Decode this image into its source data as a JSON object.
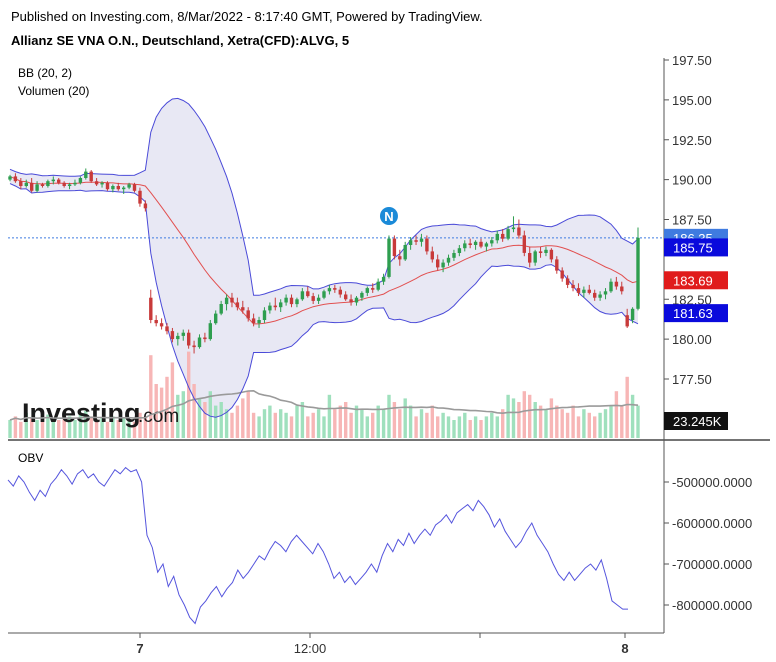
{
  "header": {
    "published": "Published on Investing.com, 8/Mar/2022 - 8:17:40 GMT, Powered by TradingView.",
    "instrument": "Allianz SE VNA O.N., Deutschland, Xetra(CFD):ALVG, 5"
  },
  "indicators": {
    "bb_label": "BB (20, 2)",
    "vol_label": "Volumen (20)",
    "obv_label": "OBV"
  },
  "logo": {
    "main": "Investing",
    "suffix": ".com"
  },
  "event_marker": "N",
  "price_axis": {
    "ticks": [
      "197.50",
      "195.00",
      "192.50",
      "190.00",
      "187.50",
      "182.50",
      "180.00",
      "177.50"
    ],
    "badges": [
      {
        "value": "186.35",
        "color": "#3f7be0"
      },
      {
        "value": "185.75",
        "color": "#0a0adc"
      },
      {
        "value": "183.69",
        "color": "#e01b1b"
      },
      {
        "value": "181.63",
        "color": "#0a0adc"
      }
    ],
    "volume_badge": "23.245K"
  },
  "obv_axis": {
    "ticks": [
      "-500000.0000",
      "-600000.0000",
      "-700000.0000",
      "-800000.0000"
    ]
  },
  "time_axis": {
    "ticks": [
      "7",
      "12:00",
      "8"
    ]
  },
  "colors": {
    "up": "#2e9e4f",
    "down": "#c83a3a",
    "vol_up": "#9fe0bd",
    "vol_down": "#f7b6b6",
    "bb_line": "#4a4ad8",
    "bb_fill": "#e4e4f2",
    "bb_mid": "#e25050",
    "obv_line": "#5555dd",
    "vol_ma": "#9a9a9a"
  },
  "chart_data": [
    {
      "type": "candlestick",
      "title": "Allianz SE VNA O.N., Deutschland, Xetra(CFD):ALVG, 5",
      "ylim": [
        176.5,
        197.5
      ],
      "last_price": 186.35,
      "ohlc": [
        [
          190.0,
          190.3,
          189.9,
          190.2
        ],
        [
          190.2,
          190.4,
          189.8,
          189.9
        ],
        [
          189.9,
          190.1,
          189.4,
          189.6
        ],
        [
          189.6,
          190.0,
          189.5,
          189.8
        ],
        [
          189.8,
          190.1,
          189.2,
          189.3
        ],
        [
          189.3,
          189.9,
          189.2,
          189.7
        ],
        [
          189.7,
          189.8,
          189.5,
          189.6
        ],
        [
          189.6,
          190.0,
          189.5,
          189.9
        ],
        [
          189.9,
          190.2,
          189.7,
          190.0
        ],
        [
          190.0,
          190.1,
          189.7,
          189.8
        ],
        [
          189.8,
          189.9,
          189.5,
          189.6
        ],
        [
          189.6,
          189.8,
          189.4,
          189.7
        ],
        [
          189.7,
          190.0,
          189.6,
          189.8
        ],
        [
          189.8,
          190.2,
          189.7,
          190.1
        ],
        [
          190.1,
          190.7,
          190.0,
          190.5
        ],
        [
          190.5,
          190.6,
          189.8,
          189.9
        ],
        [
          189.9,
          190.1,
          189.6,
          189.7
        ],
        [
          189.7,
          189.9,
          189.5,
          189.8
        ],
        [
          189.8,
          189.9,
          189.3,
          189.4
        ],
        [
          189.4,
          189.7,
          189.2,
          189.6
        ],
        [
          189.6,
          189.8,
          189.3,
          189.4
        ],
        [
          189.4,
          189.6,
          189.1,
          189.5
        ],
        [
          189.5,
          189.8,
          189.4,
          189.7
        ],
        [
          189.7,
          189.8,
          189.2,
          189.3
        ],
        [
          189.3,
          189.5,
          188.3,
          188.5
        ],
        [
          188.5,
          188.7,
          188.0,
          188.2
        ],
        [
          182.6,
          183.1,
          181.0,
          181.2
        ],
        [
          181.2,
          181.5,
          180.8,
          181.0
        ],
        [
          181.0,
          181.3,
          180.6,
          180.8
        ],
        [
          180.8,
          181.0,
          180.3,
          180.5
        ],
        [
          180.5,
          180.7,
          179.8,
          180.0
        ],
        [
          180.0,
          180.4,
          179.6,
          180.2
        ],
        [
          180.2,
          180.6,
          179.9,
          180.4
        ],
        [
          180.4,
          180.6,
          179.4,
          179.6
        ],
        [
          179.6,
          179.9,
          179.1,
          179.5
        ],
        [
          179.5,
          180.3,
          179.4,
          180.1
        ],
        [
          180.1,
          180.4,
          179.8,
          180.0
        ],
        [
          180.0,
          181.2,
          179.9,
          181.0
        ],
        [
          181.0,
          181.8,
          180.9,
          181.6
        ],
        [
          181.6,
          182.4,
          181.5,
          182.2
        ],
        [
          182.2,
          182.8,
          181.8,
          182.6
        ],
        [
          182.6,
          182.9,
          182.0,
          182.3
        ],
        [
          182.3,
          182.6,
          181.8,
          182.0
        ],
        [
          182.0,
          182.4,
          181.6,
          181.8
        ],
        [
          181.8,
          182.0,
          181.1,
          181.3
        ],
        [
          181.3,
          181.6,
          180.8,
          181.0
        ],
        [
          181.0,
          181.4,
          180.7,
          181.2
        ],
        [
          181.2,
          182.0,
          181.0,
          181.8
        ],
        [
          181.8,
          182.3,
          181.6,
          182.1
        ],
        [
          182.1,
          182.6,
          181.8,
          182.0
        ],
        [
          182.0,
          182.5,
          181.7,
          182.3
        ],
        [
          182.3,
          182.8,
          182.1,
          182.6
        ],
        [
          182.6,
          182.8,
          182.0,
          182.2
        ],
        [
          182.2,
          182.6,
          182.0,
          182.5
        ],
        [
          182.5,
          183.2,
          182.4,
          183.0
        ],
        [
          183.0,
          183.3,
          182.6,
          182.7
        ],
        [
          182.7,
          182.9,
          182.2,
          182.4
        ],
        [
          182.4,
          182.8,
          182.2,
          182.6
        ],
        [
          182.6,
          183.1,
          182.5,
          183.0
        ],
        [
          183.0,
          183.4,
          182.8,
          183.2
        ],
        [
          183.2,
          183.4,
          182.9,
          183.1
        ],
        [
          183.1,
          183.3,
          182.6,
          182.8
        ],
        [
          182.8,
          183.0,
          182.4,
          182.5
        ],
        [
          182.5,
          182.8,
          182.1,
          182.3
        ],
        [
          182.3,
          182.7,
          182.1,
          182.6
        ],
        [
          182.6,
          183.0,
          182.4,
          182.9
        ],
        [
          182.9,
          183.3,
          182.7,
          183.2
        ],
        [
          183.2,
          183.5,
          182.9,
          183.1
        ],
        [
          183.1,
          183.8,
          183.0,
          183.6
        ],
        [
          183.6,
          184.1,
          183.4,
          183.9
        ],
        [
          183.9,
          186.5,
          183.8,
          186.3
        ],
        [
          186.3,
          186.5,
          185.0,
          185.2
        ],
        [
          185.2,
          185.6,
          184.6,
          185.0
        ],
        [
          185.0,
          186.1,
          184.9,
          185.9
        ],
        [
          185.9,
          186.4,
          185.6,
          186.2
        ],
        [
          186.2,
          186.5,
          185.9,
          186.1
        ],
        [
          186.1,
          186.6,
          185.8,
          186.3
        ],
        [
          186.3,
          186.5,
          185.3,
          185.5
        ],
        [
          185.5,
          185.8,
          184.8,
          185.0
        ],
        [
          185.0,
          185.3,
          184.3,
          184.5
        ],
        [
          184.5,
          185.0,
          184.2,
          184.8
        ],
        [
          184.8,
          185.3,
          184.6,
          185.1
        ],
        [
          185.1,
          185.6,
          184.9,
          185.4
        ],
        [
          185.4,
          185.9,
          185.2,
          185.7
        ],
        [
          185.7,
          186.2,
          185.5,
          186.0
        ],
        [
          186.0,
          186.3,
          185.7,
          185.9
        ],
        [
          185.9,
          186.2,
          185.6,
          186.1
        ],
        [
          186.1,
          186.3,
          185.7,
          185.8
        ],
        [
          185.8,
          186.1,
          185.5,
          186.0
        ],
        [
          186.0,
          186.4,
          185.8,
          186.2
        ],
        [
          186.2,
          186.8,
          186.0,
          186.6
        ],
        [
          186.6,
          186.9,
          186.1,
          186.3
        ],
        [
          186.3,
          187.1,
          186.2,
          186.9
        ],
        [
          186.9,
          187.7,
          186.7,
          187.0
        ],
        [
          187.0,
          187.5,
          186.3,
          186.5
        ],
        [
          186.5,
          186.8,
          185.2,
          185.4
        ],
        [
          185.4,
          185.8,
          184.5,
          184.8
        ],
        [
          184.8,
          185.6,
          184.6,
          185.5
        ],
        [
          185.5,
          185.8,
          185.1,
          185.4
        ],
        [
          185.4,
          185.8,
          185.2,
          185.6
        ],
        [
          185.6,
          185.7,
          184.8,
          185.0
        ],
        [
          185.0,
          185.2,
          184.1,
          184.3
        ],
        [
          184.3,
          184.5,
          183.6,
          183.8
        ],
        [
          183.8,
          184.0,
          183.2,
          183.4
        ],
        [
          183.4,
          183.7,
          183.0,
          183.2
        ],
        [
          183.2,
          183.5,
          182.7,
          182.9
        ],
        [
          182.9,
          183.3,
          182.6,
          183.1
        ],
        [
          183.1,
          183.4,
          182.8,
          182.9
        ],
        [
          182.9,
          183.1,
          182.4,
          182.6
        ],
        [
          182.6,
          183.0,
          182.4,
          182.8
        ],
        [
          182.8,
          183.2,
          182.5,
          183.0
        ],
        [
          183.0,
          183.8,
          182.9,
          183.6
        ],
        [
          183.6,
          183.9,
          183.1,
          183.3
        ],
        [
          183.3,
          183.6,
          182.8,
          183.0
        ],
        [
          181.5,
          181.9,
          180.7,
          180.8
        ],
        [
          181.2,
          182.0,
          181.0,
          181.9
        ],
        [
          181.9,
          187.0,
          181.8,
          186.35
        ]
      ],
      "volume": [
        0.5,
        0.6,
        0.45,
        0.7,
        0.55,
        0.5,
        0.6,
        0.65,
        0.45,
        0.5,
        0.55,
        0.6,
        0.5,
        0.7,
        0.75,
        0.6,
        0.5,
        0.55,
        0.45,
        0.6,
        0.5,
        0.55,
        0.5,
        0.45,
        0.7,
        0.6,
        2.3,
        1.5,
        1.4,
        1.7,
        2.1,
        1.2,
        1.3,
        2.4,
        1.5,
        1.1,
        1.0,
        1.3,
        0.9,
        1.0,
        0.8,
        0.7,
        0.9,
        1.1,
        1.3,
        0.7,
        0.6,
        0.8,
        0.9,
        0.7,
        0.8,
        0.7,
        0.6,
        0.9,
        1.0,
        0.6,
        0.7,
        0.8,
        0.6,
        1.2,
        0.8,
        0.9,
        1.0,
        0.7,
        0.9,
        0.8,
        0.6,
        0.7,
        0.9,
        0.8,
        1.2,
        1.0,
        0.8,
        1.1,
        0.9,
        0.6,
        0.8,
        0.7,
        0.9,
        0.6,
        0.7,
        0.6,
        0.5,
        0.6,
        0.7,
        0.5,
        0.6,
        0.5,
        0.6,
        0.7,
        0.6,
        0.8,
        1.2,
        1.1,
        1.0,
        1.3,
        1.2,
        1.0,
        0.9,
        0.8,
        1.1,
        0.9,
        0.8,
        0.7,
        0.9,
        0.6,
        0.8,
        0.7,
        0.6,
        0.7,
        0.8,
        0.9,
        1.3,
        0.9,
        1.7,
        1.2,
        0.9
      ]
    },
    {
      "type": "line",
      "title": "OBV",
      "ylim": [
        -870000,
        -430000
      ],
      "values": [
        -495000,
        -510000,
        -485000,
        -500000,
        -525000,
        -545000,
        -520000,
        -535000,
        -505000,
        -490000,
        -470000,
        -485000,
        -505000,
        -480000,
        -470000,
        -490000,
        -480000,
        -500000,
        -510000,
        -490000,
        -470000,
        -480000,
        -465000,
        -475000,
        -470000,
        -500000,
        -630000,
        -660000,
        -720000,
        -700000,
        -755000,
        -730000,
        -775000,
        -800000,
        -830000,
        -845000,
        -805000,
        -790000,
        -770000,
        -755000,
        -780000,
        -760000,
        -745000,
        -715000,
        -735000,
        -720000,
        -700000,
        -680000,
        -690000,
        -665000,
        -645000,
        -655000,
        -670000,
        -645000,
        -630000,
        -645000,
        -660000,
        -675000,
        -650000,
        -670000,
        -700000,
        -735000,
        -720000,
        -745000,
        -730000,
        -750000,
        -735000,
        -720000,
        -700000,
        -720000,
        -680000,
        -650000,
        -670000,
        -640000,
        -655000,
        -625000,
        -650000,
        -630000,
        -615000,
        -630000,
        -605000,
        -595000,
        -580000,
        -600000,
        -575000,
        -565000,
        -555000,
        -570000,
        -545000,
        -560000,
        -580000,
        -610000,
        -590000,
        -620000,
        -640000,
        -660000,
        -645000,
        -620000,
        -600000,
        -630000,
        -650000,
        -670000,
        -700000,
        -725000,
        -740000,
        -720000,
        -740000,
        -725000,
        -710000,
        -700000,
        -715000,
        -690000,
        -735000,
        -790000,
        -800000,
        -810000,
        -810000
      ]
    }
  ]
}
